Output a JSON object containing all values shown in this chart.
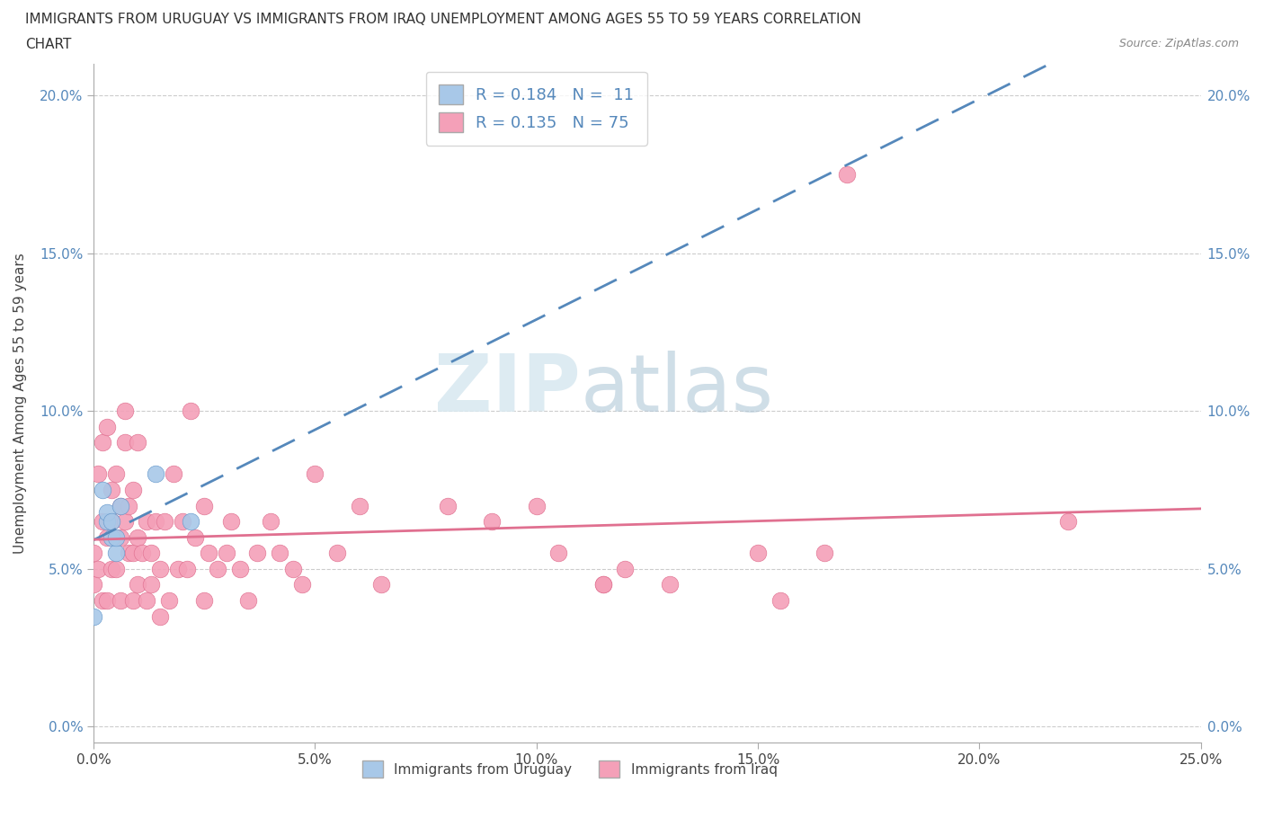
{
  "title_line1": "IMMIGRANTS FROM URUGUAY VS IMMIGRANTS FROM IRAQ UNEMPLOYMENT AMONG AGES 55 TO 59 YEARS CORRELATION",
  "title_line2": "CHART",
  "source_text": "Source: ZipAtlas.com",
  "ylabel": "Unemployment Among Ages 55 to 59 years",
  "xlim": [
    0.0,
    0.25
  ],
  "ylim": [
    -0.005,
    0.21
  ],
  "yticks": [
    0.0,
    0.05,
    0.1,
    0.15,
    0.2
  ],
  "ytick_labels": [
    "0.0%",
    "5.0%",
    "10.0%",
    "15.0%",
    "20.0%"
  ],
  "xticks": [
    0.0,
    0.05,
    0.1,
    0.15,
    0.2,
    0.25
  ],
  "xtick_labels": [
    "0.0%",
    "5.0%",
    "10.0%",
    "15.0%",
    "20.0%",
    "25.0%"
  ],
  "uruguay_color": "#a8c8e8",
  "iraq_color": "#f4a0b8",
  "uruguay_edge": "#6699cc",
  "iraq_edge": "#e07090",
  "trend_uruguay_color": "#5588bb",
  "trend_iraq_color": "#e07090",
  "legend_uruguay_label": "R = 0.184   N =  11",
  "legend_iraq_label": "R = 0.135   N = 75",
  "watermark_zip": "ZIP",
  "watermark_atlas": "atlas",
  "R_uruguay": 0.184,
  "N_uruguay": 11,
  "R_iraq": 0.135,
  "N_iraq": 75,
  "uruguay_scatter_x": [
    0.002,
    0.003,
    0.003,
    0.004,
    0.004,
    0.005,
    0.005,
    0.006,
    0.014,
    0.022,
    0.0
  ],
  "uruguay_scatter_y": [
    0.075,
    0.065,
    0.068,
    0.06,
    0.065,
    0.055,
    0.06,
    0.07,
    0.08,
    0.065,
    0.035
  ],
  "iraq_scatter_x": [
    0.0,
    0.0,
    0.001,
    0.001,
    0.002,
    0.002,
    0.002,
    0.003,
    0.003,
    0.003,
    0.004,
    0.004,
    0.004,
    0.005,
    0.005,
    0.006,
    0.006,
    0.006,
    0.007,
    0.007,
    0.007,
    0.008,
    0.008,
    0.009,
    0.009,
    0.009,
    0.01,
    0.01,
    0.01,
    0.011,
    0.012,
    0.012,
    0.013,
    0.013,
    0.014,
    0.015,
    0.015,
    0.016,
    0.017,
    0.018,
    0.019,
    0.02,
    0.021,
    0.022,
    0.023,
    0.025,
    0.025,
    0.026,
    0.028,
    0.03,
    0.031,
    0.033,
    0.035,
    0.037,
    0.04,
    0.042,
    0.045,
    0.047,
    0.05,
    0.055,
    0.06,
    0.065,
    0.08,
    0.09,
    0.1,
    0.105,
    0.115,
    0.12,
    0.13,
    0.15,
    0.155,
    0.165,
    0.17,
    0.22,
    0.115
  ],
  "iraq_scatter_y": [
    0.055,
    0.045,
    0.05,
    0.08,
    0.04,
    0.065,
    0.09,
    0.04,
    0.06,
    0.095,
    0.05,
    0.065,
    0.075,
    0.05,
    0.08,
    0.04,
    0.06,
    0.07,
    0.065,
    0.09,
    0.1,
    0.055,
    0.07,
    0.04,
    0.055,
    0.075,
    0.045,
    0.06,
    0.09,
    0.055,
    0.04,
    0.065,
    0.045,
    0.055,
    0.065,
    0.035,
    0.05,
    0.065,
    0.04,
    0.08,
    0.05,
    0.065,
    0.05,
    0.1,
    0.06,
    0.04,
    0.07,
    0.055,
    0.05,
    0.055,
    0.065,
    0.05,
    0.04,
    0.055,
    0.065,
    0.055,
    0.05,
    0.045,
    0.08,
    0.055,
    0.07,
    0.045,
    0.07,
    0.065,
    0.07,
    0.055,
    0.045,
    0.05,
    0.045,
    0.055,
    0.04,
    0.055,
    0.175,
    0.065,
    0.045
  ]
}
